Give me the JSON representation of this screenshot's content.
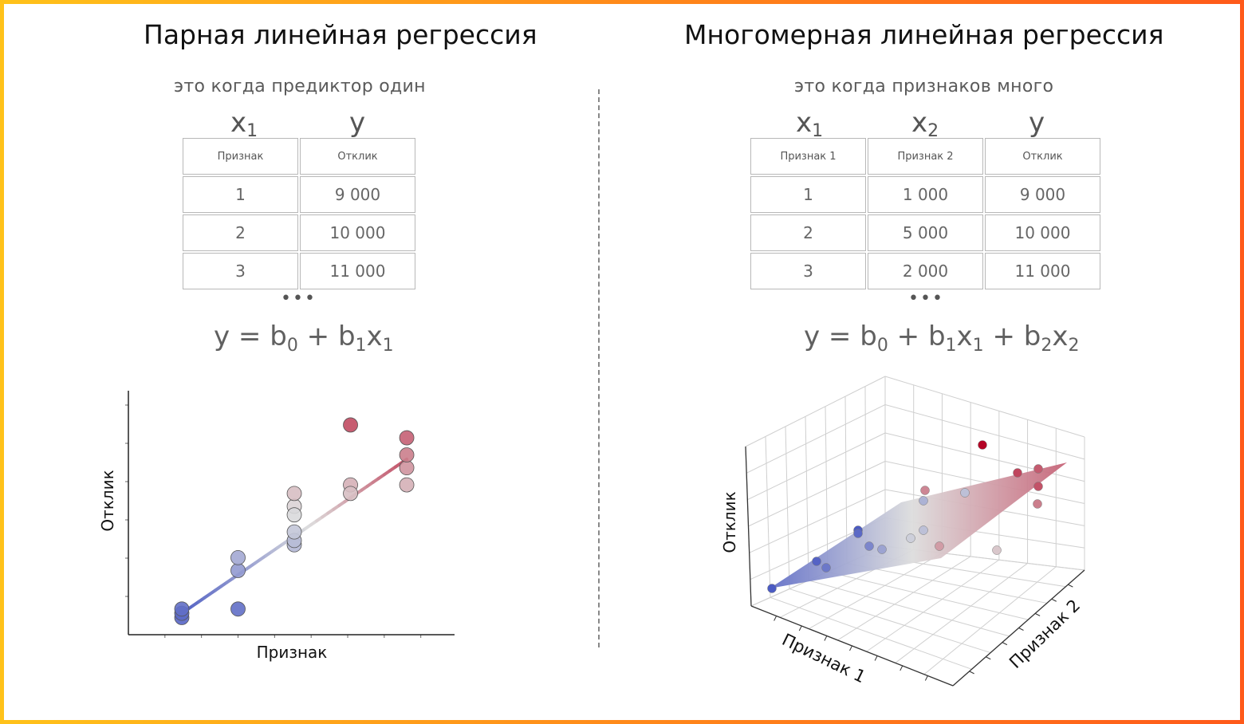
{
  "left": {
    "title": "Парная линейная регрессия",
    "subtitle": "это когда предиктор один",
    "col_vars": [
      {
        "base": "x",
        "sub": "1"
      },
      {
        "base": "y",
        "sub": ""
      }
    ],
    "table": {
      "headers": [
        "Признак",
        "Отклик"
      ],
      "rows": [
        [
          "1",
          "9 000"
        ],
        [
          "2",
          "10 000"
        ],
        [
          "3",
          "11 000"
        ]
      ]
    },
    "ellipsis": "•••",
    "formula": {
      "y": "y",
      "eq": " = ",
      "b0": "b",
      "b0_sub": "0",
      "plus": " + ",
      "b1": "b",
      "b1_sub": "1",
      "x1": "x",
      "x1_sub": "1"
    }
  },
  "right": {
    "title": "Многомерная линейная регрессия",
    "subtitle": "это когда признаков много",
    "col_vars": [
      {
        "base": "x",
        "sub": "1"
      },
      {
        "base": "x",
        "sub": "2"
      },
      {
        "base": "y",
        "sub": ""
      }
    ],
    "table": {
      "headers": [
        "Признак 1",
        "Признак 2",
        "Отклик"
      ],
      "rows": [
        [
          "1",
          "1 000",
          "9 000"
        ],
        [
          "2",
          "5 000",
          "10 000"
        ],
        [
          "3",
          "2 000",
          "11 000"
        ]
      ]
    },
    "ellipsis": "•••",
    "formula": {
      "y": "y",
      "eq": " = ",
      "b0": "b",
      "b0_sub": "0",
      "p1": " + ",
      "b1": "b",
      "b1_sub": "1",
      "x1": "x",
      "x1_sub": "1",
      "p2": " + ",
      "b2": "b",
      "b2_sub": "2",
      "x2": "x",
      "x2_sub": "2"
    }
  },
  "chart_data": [
    {
      "type": "scatter",
      "title": "",
      "xlabel": "Признак",
      "ylabel": "Отклик",
      "x": [
        1,
        1,
        1,
        2,
        2,
        2,
        3,
        3,
        3,
        3,
        3,
        3,
        4,
        4,
        4,
        5,
        5,
        5,
        5
      ],
      "y": [
        1.0,
        1.1,
        1.2,
        1.2,
        2.1,
        2.4,
        2.7,
        2.8,
        3.0,
        3.6,
        3.9,
        3.4,
        4.1,
        5.5,
        3.9,
        4.1,
        4.5,
        4.8,
        5.2
      ],
      "fit_line": {
        "x": [
          1,
          5
        ],
        "y": [
          1.1,
          4.7
        ]
      },
      "colormap": "coolwarm",
      "colors": {
        "low": "#3b4cc0",
        "mid": "#dddddd",
        "high": "#b40426"
      }
    },
    {
      "type": "scatter3d",
      "title": "",
      "xlabel": "Признак 1",
      "ylabel": "Признак 2",
      "zlabel": "Отклик",
      "surface": "plane",
      "colormap": "coolwarm",
      "colors": {
        "low": "#3b4cc0",
        "mid": "#dddddd",
        "high": "#b40426"
      }
    }
  ]
}
